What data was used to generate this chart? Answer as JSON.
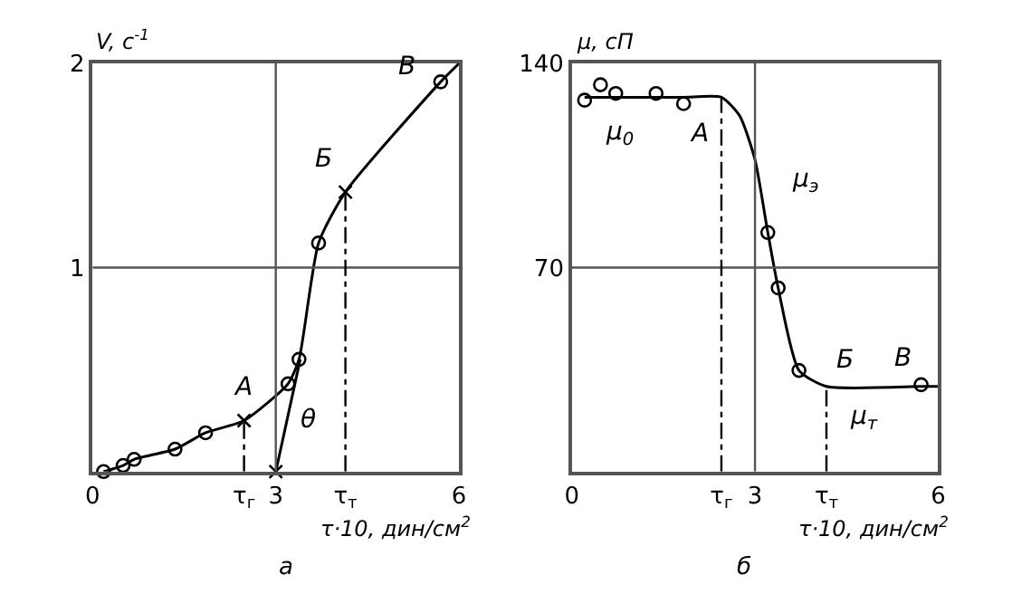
{
  "chart_data": [
    {
      "type": "line",
      "xlabel": "τ·10, дин/см$^{2}$",
      "ylabel": "V, с$^{-1}$",
      "xlim": [
        0,
        6
      ],
      "ylim": [
        0,
        2
      ],
      "xticks": [
        0,
        {
          "value": 2.48,
          "label": "τ$_{г}$"
        },
        3,
        {
          "value": 4.14,
          "label": "τ$_{т}$"
        },
        6
      ],
      "yticks": [
        1,
        2
      ],
      "grid": false,
      "series": [
        {
          "type": "line",
          "color": "#000000",
          "marker": "none",
          "line_style": "solid",
          "x": [
            0.18,
            0.5,
            0.68,
            1.35,
            1.85,
            2.48,
            3.2,
            3.38,
            3.7,
            4.14,
            5.7,
            6.0
          ],
          "values": [
            0,
            0.03,
            0.06,
            0.11,
            0.19,
            0.25,
            0.43,
            0.55,
            1.12,
            1.37,
            1.91,
            2.0
          ]
        },
        {
          "type": "line",
          "color": "#000000",
          "marker": "none",
          "line_style": "solid",
          "x": [
            3.0,
            3.4
          ],
          "values": [
            0,
            0.55
          ]
        },
        {
          "type": "scatter",
          "color": "#000000",
          "marker": "circle",
          "x": [
            0.18,
            0.5,
            0.68,
            1.35,
            1.85,
            3.2,
            3.38,
            3.7,
            5.7
          ],
          "values": [
            0,
            0.03,
            0.06,
            0.11,
            0.19,
            0.43,
            0.55,
            1.12,
            1.91
          ]
        },
        {
          "type": "scatter",
          "color": "#000000",
          "marker": "cross",
          "x": [
            2.48,
            3.0,
            4.14
          ],
          "values": [
            0.25,
            0,
            1.37
          ]
        }
      ],
      "ref_lines": [
        {
          "axis": "x",
          "value": 3,
          "color": "#555555",
          "line_style": "solid"
        },
        {
          "axis": "y",
          "value": 1,
          "color": "#555555",
          "line_style": "solid"
        },
        {
          "axis": "x",
          "value": 2.48,
          "color": "#000000",
          "line_style": "dashed"
        },
        {
          "axis": "x",
          "value": 4.14,
          "color": "#000000",
          "line_style": "dashed"
        }
      ],
      "annotations": [
        {
          "text": "A",
          "x": 2.48,
          "y": 0.25
        },
        {
          "text": "Б",
          "x": 4.14,
          "y": 1.37
        },
        {
          "text": "В",
          "x": 5.7,
          "y": 1.91
        },
        {
          "text": "θ",
          "x": 3.0,
          "y": 0
        },
        "а"
      ]
    },
    {
      "type": "line",
      "xlabel": "τ·10, дин/см$^{2}$",
      "ylabel": "μ, сП",
      "xlim": [
        0,
        6
      ],
      "ylim": [
        0,
        140
      ],
      "xticks": [
        0,
        {
          "value": 2.45,
          "label": "τ$_{г}$"
        },
        3,
        {
          "value": 4.17,
          "label": "τ$_{т}$"
        },
        6
      ],
      "yticks": [
        70,
        140
      ],
      "grid": false,
      "series": [
        {
          "type": "line",
          "color": "#000000",
          "marker": "none",
          "line_style": "solid",
          "x": [
            0.21,
            1.0,
            1.83,
            2.45,
            2.75,
            3.0,
            3.21,
            3.38,
            3.72,
            4.17,
            5.72,
            6.0
          ],
          "values": [
            128.4,
            128.4,
            128.4,
            128.4,
            122,
            107,
            82,
            63,
            34.7,
            29.2,
            29.2,
            29.2
          ]
        },
        {
          "type": "scatter",
          "color": "#000000",
          "marker": "circle",
          "x": [
            0.21,
            0.47,
            0.72,
            1.38,
            1.83,
            3.21,
            3.38,
            3.72,
            5.72
          ],
          "values": [
            127.4,
            132.7,
            129.7,
            129.7,
            126.2,
            82,
            63,
            34.7,
            29.8
          ]
        }
      ],
      "ref_lines": [
        {
          "axis": "x",
          "value": 3,
          "color": "#555555",
          "line_style": "solid"
        },
        {
          "axis": "y",
          "value": 70,
          "color": "#555555",
          "line_style": "solid"
        },
        {
          "axis": "x",
          "value": 2.45,
          "color": "#000000",
          "line_style": "dashed"
        },
        {
          "axis": "x",
          "value": 4.17,
          "color": "#000000",
          "line_style": "dashed"
        }
      ],
      "annotations": [
        {
          "text": "μ$_{0}$",
          "x": 1.38,
          "y": 129.7
        },
        {
          "text": "A",
          "x": 2.45,
          "y": 128.4
        },
        {
          "text": "μ$_{э}$",
          "x": 3.21,
          "y": 82
        },
        {
          "text": "Б",
          "x": 4.17,
          "y": 29.2
        },
        {
          "text": "В",
          "x": 5.72,
          "y": 29.8
        },
        {
          "text": "μ$_{т}$",
          "x": 4.17,
          "y": 29.2
        },
        "б"
      ]
    }
  ]
}
